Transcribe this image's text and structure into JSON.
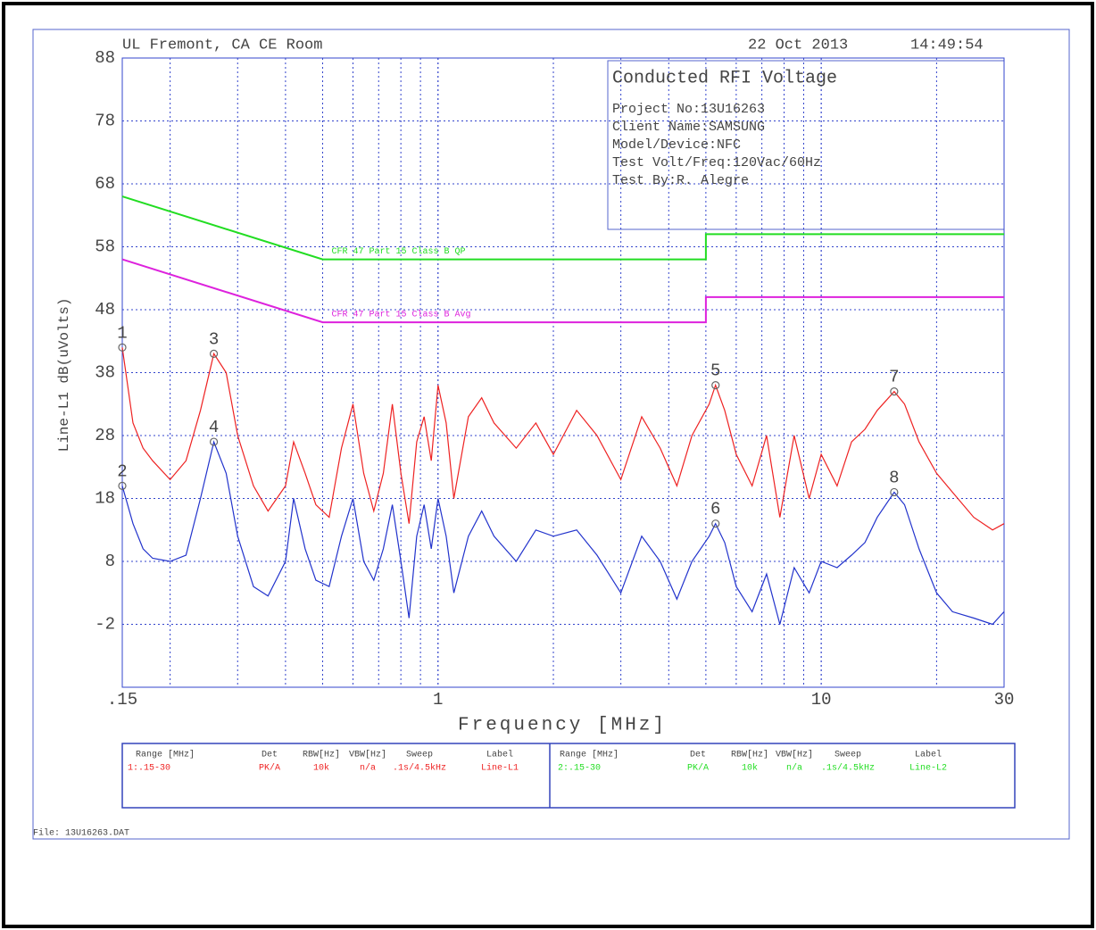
{
  "chart_data": {
    "type": "line",
    "header_left": "UL Fremont, CA CE Room",
    "header_date": "22 Oct 2013",
    "header_time": "14:49:54",
    "info": [
      "Conducted RFI Voltage",
      "Project No:13U16263",
      "Client Name:SAMSUNG",
      "Model/Device:NFC",
      "Test Volt/Freq:120Vac/60Hz",
      "Test By:R. Alegre"
    ],
    "x_label": "Frequency [MHz]",
    "y_label": "Line-L1 dB(uVolts)",
    "log_x": true,
    "grid": true,
    "xlim": [
      0.15,
      30
    ],
    "ylim": [
      -12,
      88
    ],
    "xticks": [
      {
        "value": 0.15,
        "label": ".15"
      },
      1,
      10,
      30
    ],
    "yticks": [
      88,
      78,
      68,
      58,
      48,
      38,
      28,
      18,
      8,
      -2
    ],
    "series": [
      {
        "name": "CFR 47 Part 15 Class B QP",
        "color": "#22dd22",
        "x": [
          0.15,
          0.5,
          5,
          5,
          30
        ],
        "values": [
          66,
          56,
          56,
          60,
          60
        ]
      },
      {
        "name": "CFR 47 Part 15 Class B Avg",
        "color": "#dd22dd",
        "x": [
          0.15,
          0.5,
          5,
          5,
          30
        ],
        "values": [
          56,
          46,
          46,
          50,
          50
        ]
      },
      {
        "color": "#ee2222",
        "x": [
          0.15,
          0.16,
          0.17,
          0.18,
          0.2,
          0.22,
          0.24,
          0.26,
          0.28,
          0.3,
          0.33,
          0.36,
          0.4,
          0.42,
          0.45,
          0.48,
          0.52,
          0.56,
          0.6,
          0.64,
          0.68,
          0.72,
          0.76,
          0.8,
          0.84,
          0.88,
          0.92,
          0.96,
          1,
          1.05,
          1.1,
          1.2,
          1.3,
          1.4,
          1.6,
          1.8,
          2,
          2.3,
          2.6,
          3,
          3.4,
          3.8,
          4.2,
          4.6,
          5.1,
          5.3,
          5.6,
          6,
          6.6,
          7.2,
          7.8,
          8.5,
          9.3,
          10,
          11,
          12,
          13,
          14,
          15.5,
          16.5,
          18,
          20,
          22,
          25,
          28,
          30
        ],
        "values": [
          42,
          30,
          26,
          24,
          21,
          24,
          32,
          41,
          38,
          28,
          20,
          16,
          20,
          27,
          22,
          17,
          15,
          26,
          33,
          22,
          16,
          22,
          33,
          22,
          14,
          27,
          31,
          24,
          36,
          30,
          18,
          31,
          34,
          30,
          26,
          30,
          25,
          32,
          28,
          21,
          31,
          26,
          20,
          28,
          33,
          36,
          32,
          25,
          20,
          28,
          15,
          28,
          18,
          25,
          20,
          27,
          29,
          32,
          35,
          33,
          27,
          22,
          19,
          15,
          13,
          14
        ]
      },
      {
        "color": "#2233cc",
        "x": [
          0.15,
          0.16,
          0.17,
          0.18,
          0.2,
          0.22,
          0.24,
          0.26,
          0.28,
          0.3,
          0.33,
          0.36,
          0.4,
          0.42,
          0.45,
          0.48,
          0.52,
          0.56,
          0.6,
          0.64,
          0.68,
          0.72,
          0.76,
          0.8,
          0.84,
          0.88,
          0.92,
          0.96,
          1,
          1.05,
          1.1,
          1.2,
          1.3,
          1.4,
          1.6,
          1.8,
          2,
          2.3,
          2.6,
          3,
          3.4,
          3.8,
          4.2,
          4.6,
          5.1,
          5.3,
          5.6,
          6,
          6.6,
          7.2,
          7.8,
          8.5,
          9.3,
          10,
          11,
          12,
          13,
          14,
          15.5,
          16.5,
          18,
          20,
          22,
          25,
          28,
          30
        ],
        "values": [
          20,
          14,
          10,
          8.5,
          8,
          9,
          18,
          27,
          22,
          12,
          4,
          2.5,
          8,
          18,
          10,
          5,
          4,
          12,
          18,
          8,
          5,
          10,
          17,
          8,
          -1,
          12,
          17,
          10,
          18,
          12,
          3,
          12,
          16,
          12,
          8,
          13,
          12,
          13,
          9,
          3,
          12,
          8,
          2,
          8,
          12,
          14,
          11,
          4,
          0,
          6,
          -2,
          7,
          3,
          8,
          7,
          9,
          11,
          15,
          19,
          17,
          10,
          3,
          0,
          -1,
          -2,
          0
        ]
      }
    ],
    "markers": {
      "labels": [
        "1",
        "2",
        "3",
        "4",
        "5",
        "6",
        "7",
        "8"
      ],
      "x": [
        0.15,
        0.15,
        0.26,
        0.26,
        5.3,
        5.3,
        15.5,
        15.5
      ],
      "y": [
        42,
        20,
        41,
        27,
        36,
        14,
        35,
        19
      ]
    },
    "legend_table": {
      "columns": [
        "Range [MHz]",
        "Det",
        "RBW[Hz]",
        "VBW[Hz]",
        "Sweep",
        "Label"
      ],
      "rows": [
        {
          "color": "#ee2222",
          "cells": [
            "1:.15-30",
            "PK/A",
            "10k",
            "n/a",
            ".1s/4.5kHz",
            "Line-L1"
          ]
        },
        {
          "color": "#22dd22",
          "cells": [
            "2:.15-30",
            "PK/A",
            "10k",
            "n/a",
            ".1s/4.5kHz",
            "Line-L2"
          ]
        }
      ]
    },
    "file": "File: 13U16263.DAT"
  }
}
